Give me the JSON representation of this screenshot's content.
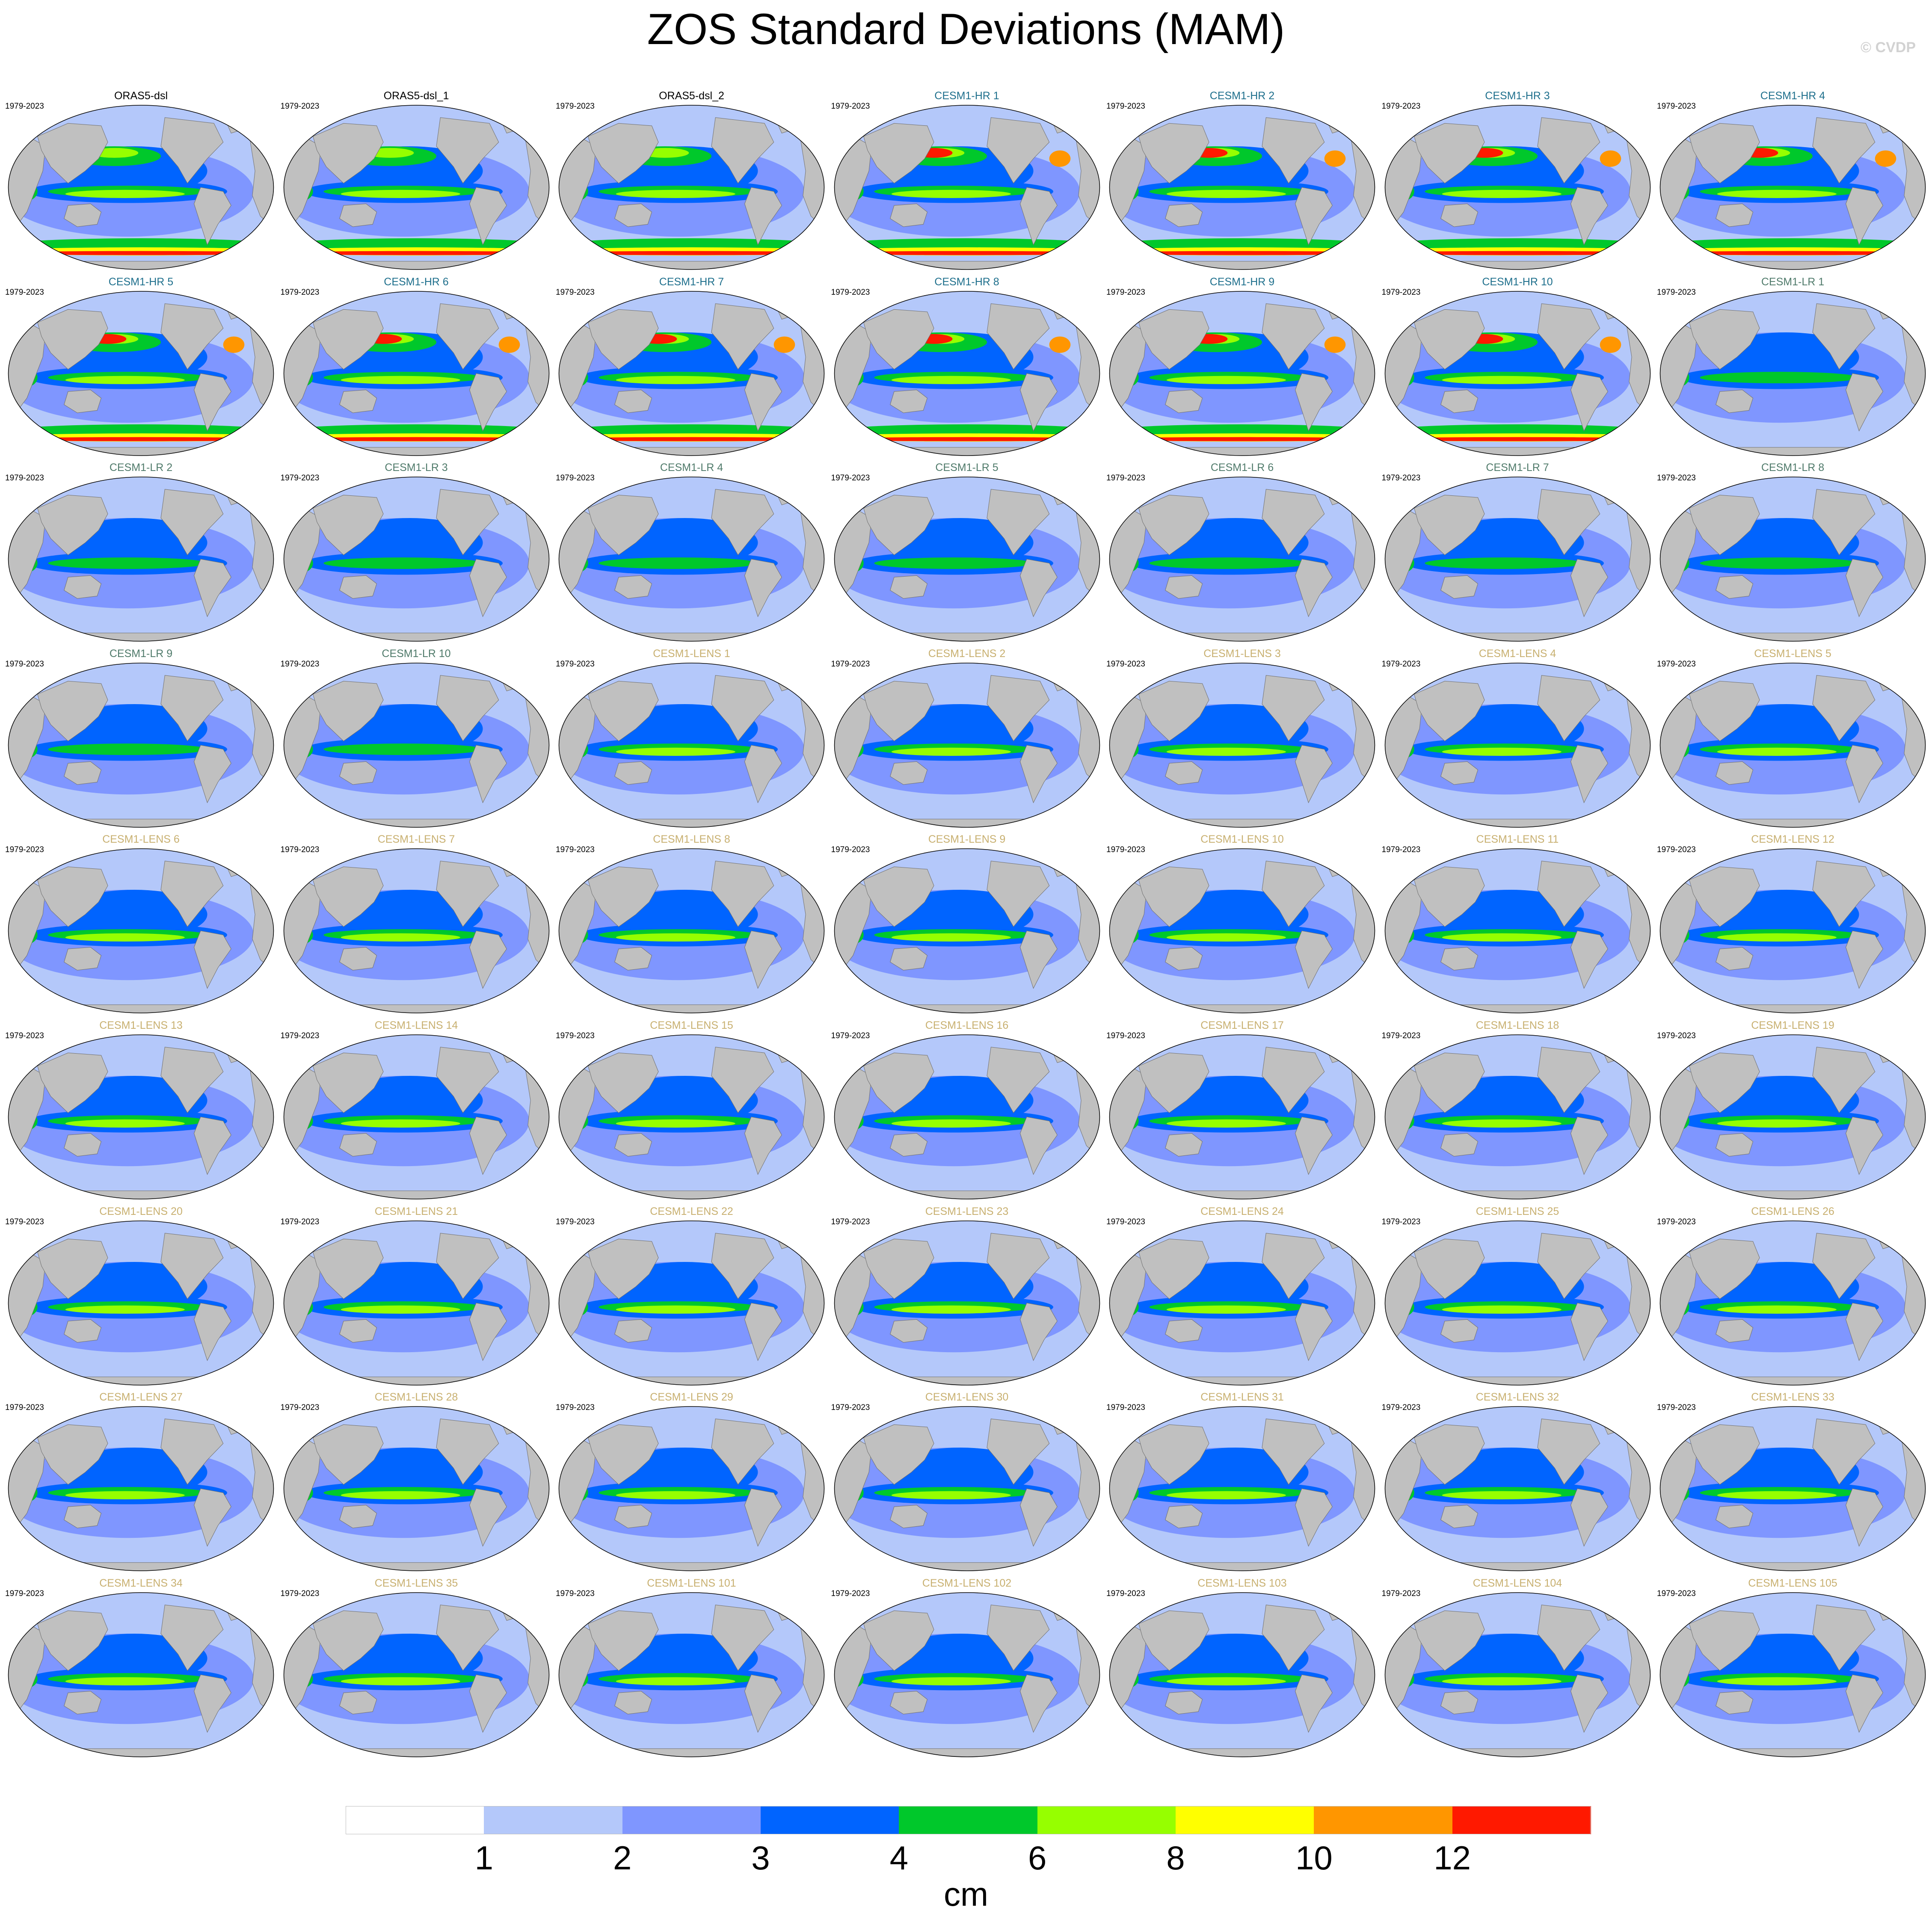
{
  "title": "ZOS Standard Deviations (MAM)",
  "credit": "© CVDP",
  "period": "1979-2023",
  "colors": {
    "land": "#c0c0c0",
    "group_obs": "#000000",
    "group_hr": "#1e6f8c",
    "group_lr": "#4f7a6a",
    "group_lens": "#c8b070"
  },
  "panels": [
    {
      "label": "ORAS5-dsl",
      "group": "obs",
      "level": 0.55
    },
    {
      "label": "ORAS5-dsl_1",
      "group": "obs",
      "level": 0.55
    },
    {
      "label": "ORAS5-dsl_2",
      "group": "obs",
      "level": 0.55
    },
    {
      "label": "CESM1-HR 1",
      "group": "hr",
      "level": 0.75
    },
    {
      "label": "CESM1-HR 2",
      "group": "hr",
      "level": 0.75
    },
    {
      "label": "CESM1-HR 3",
      "group": "hr",
      "level": 0.8
    },
    {
      "label": "CESM1-HR 4",
      "group": "hr",
      "level": 0.75
    },
    {
      "label": "CESM1-HR 5",
      "group": "hr",
      "level": 0.8
    },
    {
      "label": "CESM1-HR 6",
      "group": "hr",
      "level": 0.8
    },
    {
      "label": "CESM1-HR 7",
      "group": "hr",
      "level": 0.8
    },
    {
      "label": "CESM1-HR 8",
      "group": "hr",
      "level": 0.8
    },
    {
      "label": "CESM1-HR 9",
      "group": "hr",
      "level": 0.8
    },
    {
      "label": "CESM1-HR 10",
      "group": "hr",
      "level": 0.8
    },
    {
      "label": "CESM1-LR 1",
      "group": "lr",
      "level": 0.35
    },
    {
      "label": "CESM1-LR 2",
      "group": "lr",
      "level": 0.35
    },
    {
      "label": "CESM1-LR 3",
      "group": "lr",
      "level": 0.35
    },
    {
      "label": "CESM1-LR 4",
      "group": "lr",
      "level": 0.35
    },
    {
      "label": "CESM1-LR 5",
      "group": "lr",
      "level": 0.35
    },
    {
      "label": "CESM1-LR 6",
      "group": "lr",
      "level": 0.35
    },
    {
      "label": "CESM1-LR 7",
      "group": "lr",
      "level": 0.35
    },
    {
      "label": "CESM1-LR 8",
      "group": "lr",
      "level": 0.35
    },
    {
      "label": "CESM1-LR 9",
      "group": "lr",
      "level": 0.35
    },
    {
      "label": "CESM1-LR 10",
      "group": "lr",
      "level": 0.35
    },
    {
      "label": "CESM1-LENS 1",
      "group": "lens",
      "level": 0.45
    },
    {
      "label": "CESM1-LENS 2",
      "group": "lens",
      "level": 0.45
    },
    {
      "label": "CESM1-LENS 3",
      "group": "lens",
      "level": 0.45
    },
    {
      "label": "CESM1-LENS 4",
      "group": "lens",
      "level": 0.45
    },
    {
      "label": "CESM1-LENS 5",
      "group": "lens",
      "level": 0.45
    },
    {
      "label": "CESM1-LENS 6",
      "group": "lens",
      "level": 0.5
    },
    {
      "label": "CESM1-LENS 7",
      "group": "lens",
      "level": 0.5
    },
    {
      "label": "CESM1-LENS 8",
      "group": "lens",
      "level": 0.45
    },
    {
      "label": "CESM1-LENS 9",
      "group": "lens",
      "level": 0.45
    },
    {
      "label": "CESM1-LENS 10",
      "group": "lens",
      "level": 0.45
    },
    {
      "label": "CESM1-LENS 11",
      "group": "lens",
      "level": 0.45
    },
    {
      "label": "CESM1-LENS 12",
      "group": "lens",
      "level": 0.45
    },
    {
      "label": "CESM1-LENS 13",
      "group": "lens",
      "level": 0.45
    },
    {
      "label": "CESM1-LENS 14",
      "group": "lens",
      "level": 0.5
    },
    {
      "label": "CESM1-LENS 15",
      "group": "lens",
      "level": 0.45
    },
    {
      "label": "CESM1-LENS 16",
      "group": "lens",
      "level": 0.45
    },
    {
      "label": "CESM1-LENS 17",
      "group": "lens",
      "level": 0.5
    },
    {
      "label": "CESM1-LENS 18",
      "group": "lens",
      "level": 0.45
    },
    {
      "label": "CESM1-LENS 19",
      "group": "lens",
      "level": 0.45
    },
    {
      "label": "CESM1-LENS 20",
      "group": "lens",
      "level": 0.5
    },
    {
      "label": "CESM1-LENS 21",
      "group": "lens",
      "level": 0.45
    },
    {
      "label": "CESM1-LENS 22",
      "group": "lens",
      "level": 0.45
    },
    {
      "label": "CESM1-LENS 23",
      "group": "lens",
      "level": 0.45
    },
    {
      "label": "CESM1-LENS 24",
      "group": "lens",
      "level": 0.45
    },
    {
      "label": "CESM1-LENS 25",
      "group": "lens",
      "level": 0.45
    },
    {
      "label": "CESM1-LENS 26",
      "group": "lens",
      "level": 0.45
    },
    {
      "label": "CESM1-LENS 27",
      "group": "lens",
      "level": 0.45
    },
    {
      "label": "CESM1-LENS 28",
      "group": "lens",
      "level": 0.45
    },
    {
      "label": "CESM1-LENS 29",
      "group": "lens",
      "level": 0.45
    },
    {
      "label": "CESM1-LENS 30",
      "group": "lens",
      "level": 0.45
    },
    {
      "label": "CESM1-LENS 31",
      "group": "lens",
      "level": 0.45
    },
    {
      "label": "CESM1-LENS 32",
      "group": "lens",
      "level": 0.45
    },
    {
      "label": "CESM1-LENS 33",
      "group": "lens",
      "level": 0.45
    },
    {
      "label": "CESM1-LENS 34",
      "group": "lens",
      "level": 0.45
    },
    {
      "label": "CESM1-LENS 35",
      "group": "lens",
      "level": 0.45
    },
    {
      "label": "CESM1-LENS 101",
      "group": "lens",
      "level": 0.45
    },
    {
      "label": "CESM1-LENS 102",
      "group": "lens",
      "level": 0.5
    },
    {
      "label": "CESM1-LENS 103",
      "group": "lens",
      "level": 0.45
    },
    {
      "label": "CESM1-LENS 104",
      "group": "lens",
      "level": 0.45
    },
    {
      "label": "CESM1-LENS 105",
      "group": "lens",
      "level": 0.45
    }
  ],
  "colorbar": {
    "colors": [
      "#ffffff",
      "#b4c8fa",
      "#7f96ff",
      "#0064ff",
      "#00c82b",
      "#96ff00",
      "#ffff00",
      "#ff9600",
      "#ff1900"
    ],
    "tick_labels": [
      "1",
      "2",
      "3",
      "4",
      "6",
      "8",
      "10",
      "12"
    ],
    "units": "cm"
  }
}
